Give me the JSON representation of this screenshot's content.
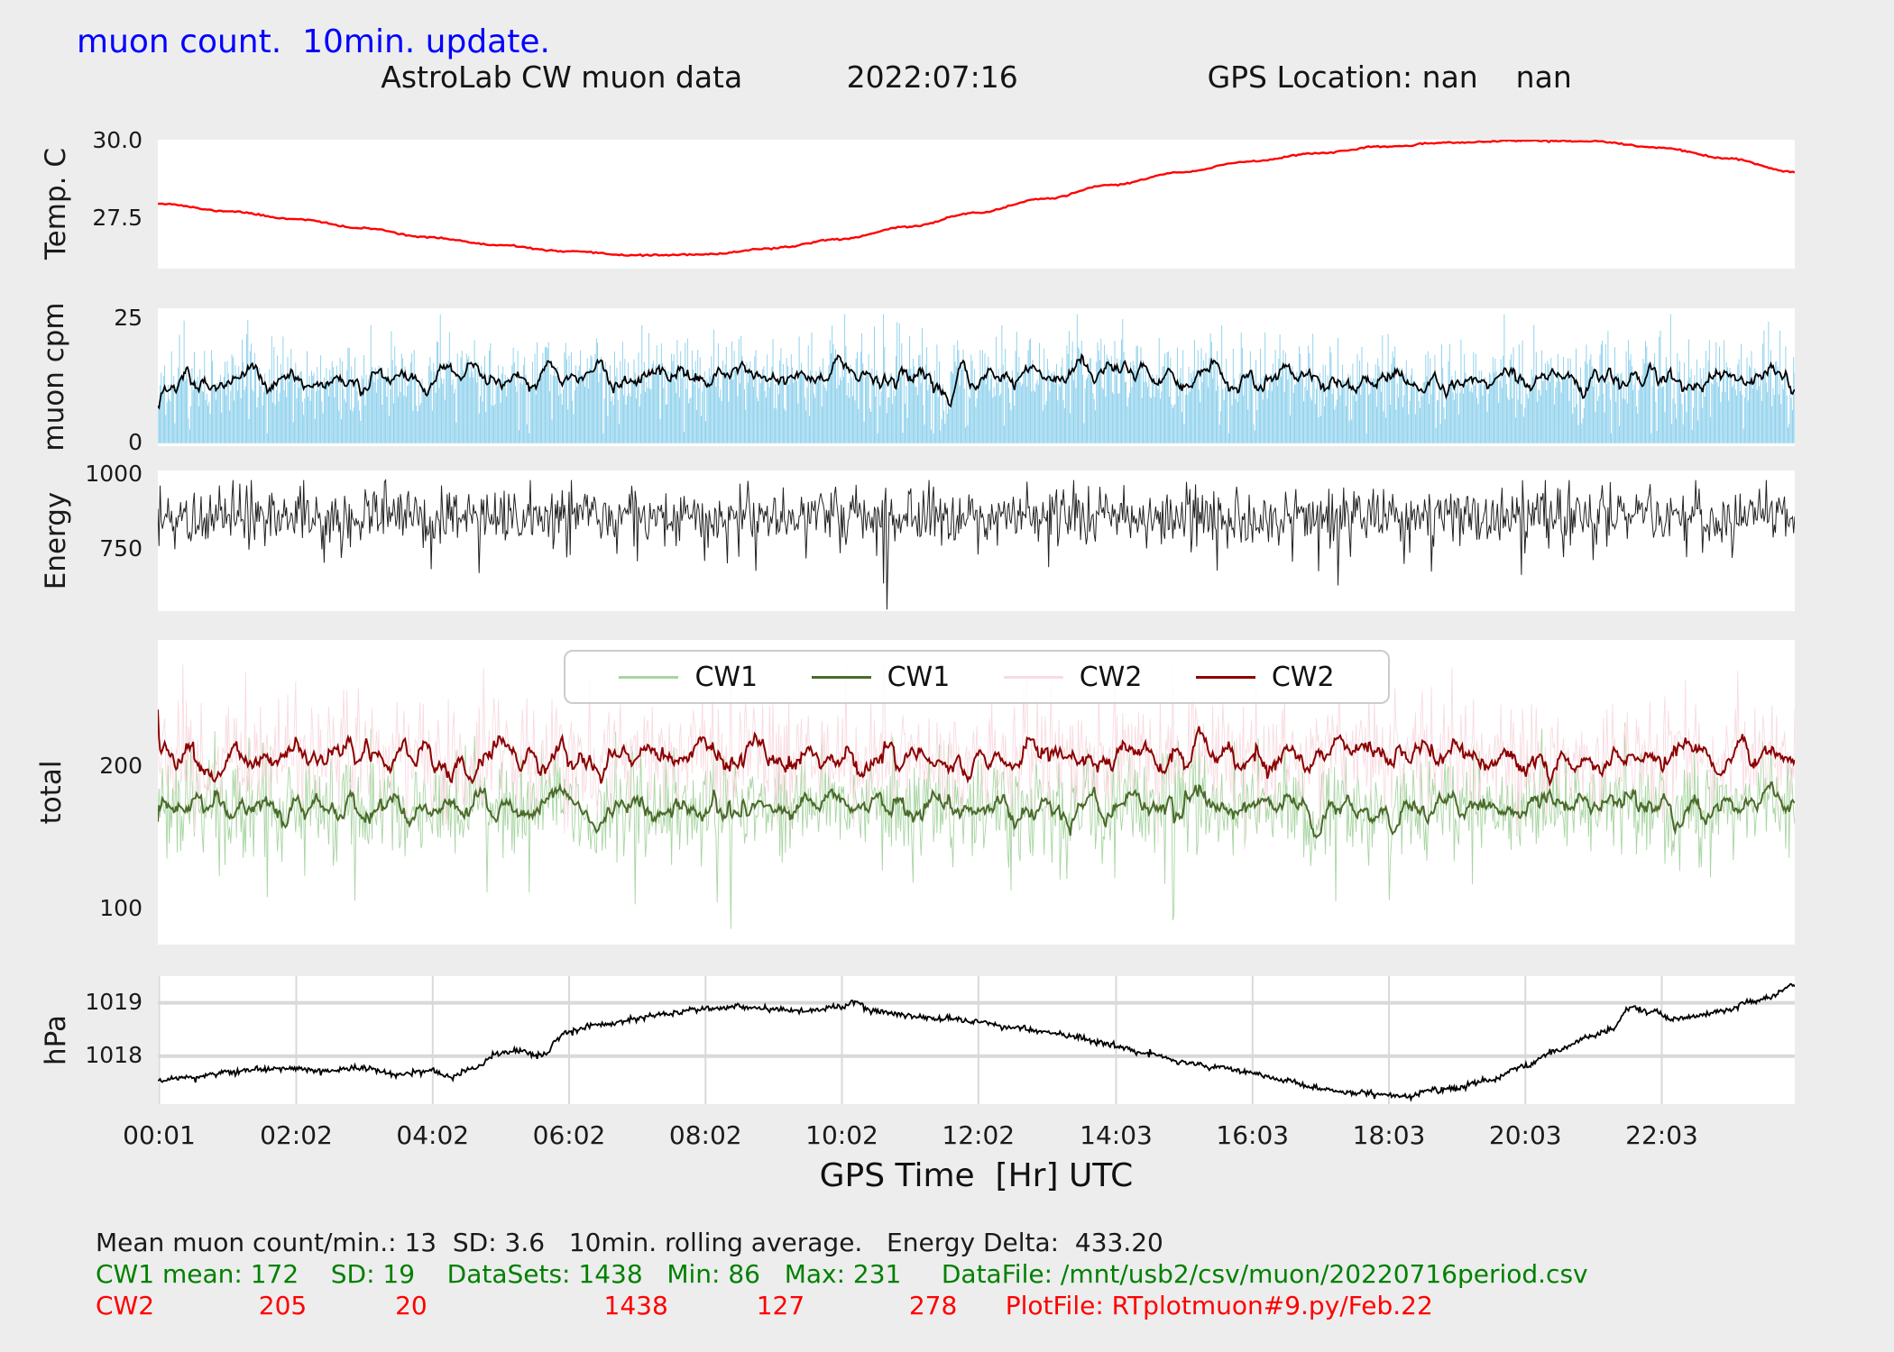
{
  "header": {
    "status_line": "muon count.  10min. update.",
    "title": "AstroLab CW muon data           2022:07:16                    GPS Location: nan    nan"
  },
  "x_axis": {
    "label": "GPS Time  [Hr] UTC",
    "tick_labels": [
      "00:01",
      "02:02",
      "04:02",
      "06:02",
      "08:02",
      "10:02",
      "12:02",
      "14:03",
      "16:03",
      "18:03",
      "20:03",
      "22:03"
    ],
    "tick_hours": [
      0.02,
      2.03,
      4.03,
      6.03,
      8.03,
      10.03,
      12.03,
      14.05,
      16.05,
      18.05,
      20.05,
      22.05
    ],
    "range_hours": [
      0,
      24
    ]
  },
  "chart_data": [
    {
      "type": "line",
      "panel": "temperature",
      "ylabel": "Temp. C",
      "ylim": [
        25.9,
        30.05
      ],
      "yticks": [
        27.5,
        30.0
      ],
      "ytick_labels": [
        "27.5",
        "30.0"
      ],
      "line_color": "#ff0000",
      "x_hours": [
        0,
        1,
        2,
        3,
        4,
        5,
        6,
        7,
        8,
        9,
        10,
        11,
        12,
        13,
        14,
        15,
        16,
        17,
        18,
        19,
        20,
        21,
        22,
        23,
        24
      ],
      "values_c": [
        28.0,
        27.75,
        27.5,
        27.2,
        26.9,
        26.65,
        26.45,
        26.33,
        26.35,
        26.55,
        26.85,
        27.25,
        27.7,
        28.15,
        28.6,
        29.0,
        29.35,
        29.62,
        29.83,
        29.96,
        30.02,
        30.0,
        29.8,
        29.45,
        29.0
      ]
    },
    {
      "type": "bar",
      "panel": "muon-cpm",
      "ylabel": "muon cpm",
      "ylim": [
        -0.6,
        27.2
      ],
      "yticks": [
        0,
        25
      ],
      "ytick_labels": [
        "0",
        "25"
      ],
      "bar_color": "#87ceeb",
      "avg_color": "#000000",
      "n_points": 1438,
      "mean": 13,
      "sd": 3.6,
      "bar_min": 2,
      "bar_max": 26,
      "rolling_window_min": 10
    },
    {
      "type": "line",
      "panel": "energy",
      "ylabel": "Energy",
      "ylim": [
        545,
        1015
      ],
      "yticks": [
        750,
        1000
      ],
      "ytick_labels": [
        "750",
        "1000"
      ],
      "line_color": "#222222",
      "n_points": 1438,
      "mean": 865,
      "sd": 48,
      "min": 550,
      "max": 983,
      "energy_delta": 433.2
    },
    {
      "type": "line",
      "panel": "total",
      "ylabel": "total",
      "ylim": [
        75,
        289
      ],
      "yticks": [
        100,
        200
      ],
      "ytick_labels": [
        "100",
        "200"
      ],
      "legend": [
        {
          "label": "CW1",
          "color": "#a8d5a2",
          "kind": "raw"
        },
        {
          "label": "CW1",
          "color": "#4a6b2a",
          "kind": "10min-average"
        },
        {
          "label": "CW2",
          "color": "#f8dbe0",
          "kind": "raw"
        },
        {
          "label": "CW2",
          "color": "#8b0000",
          "kind": "10min-average"
        }
      ],
      "series": [
        {
          "name": "CW1",
          "mean": 172,
          "sd": 19,
          "min": 86,
          "max": 231,
          "datasets": 1438
        },
        {
          "name": "CW2",
          "mean": 205,
          "sd": 20,
          "min": 127,
          "max": 278,
          "datasets": 1438
        }
      ],
      "rolling_window_min": 10
    },
    {
      "type": "line",
      "panel": "pressure",
      "ylabel": "hPa",
      "ylim": [
        1017.1,
        1019.5
      ],
      "yticks": [
        1018,
        1019
      ],
      "ytick_labels": [
        "1018",
        "1019"
      ],
      "grid": true,
      "line_color": "#000000",
      "x_hours": [
        0,
        0.5,
        1,
        1.5,
        2,
        2.5,
        3,
        3.5,
        4,
        4.3,
        4.6,
        5,
        5.3,
        5.6,
        6,
        6.5,
        7,
        7.5,
        8,
        8.5,
        9,
        9.5,
        10,
        10.2,
        10.5,
        11,
        11.5,
        12,
        12.5,
        13,
        13.5,
        14,
        14.5,
        15,
        15.5,
        16,
        16.5,
        17,
        17.5,
        18,
        18.3,
        18.7,
        19,
        19.5,
        20,
        20.5,
        21,
        21.3,
        21.6,
        21.9,
        22.2,
        22.5,
        23,
        23.3,
        23.6,
        24
      ],
      "values_hpa": [
        1017.55,
        1017.6,
        1017.7,
        1017.75,
        1017.78,
        1017.72,
        1017.78,
        1017.65,
        1017.72,
        1017.6,
        1017.75,
        1018.05,
        1018.1,
        1018.0,
        1018.45,
        1018.6,
        1018.7,
        1018.8,
        1018.88,
        1018.92,
        1018.88,
        1018.85,
        1018.92,
        1019.0,
        1018.85,
        1018.75,
        1018.7,
        1018.65,
        1018.55,
        1018.45,
        1018.35,
        1018.2,
        1018.05,
        1017.9,
        1017.8,
        1017.7,
        1017.55,
        1017.4,
        1017.32,
        1017.28,
        1017.25,
        1017.35,
        1017.4,
        1017.55,
        1017.8,
        1018.1,
        1018.35,
        1018.5,
        1018.9,
        1018.85,
        1018.7,
        1018.75,
        1018.85,
        1019.0,
        1019.1,
        1019.35
      ]
    }
  ],
  "footer": {
    "line1": "Mean muon count/min.: 13  SD: 3.6   10min. rolling average.   Energy Delta:  433.20",
    "line2": "CW1 mean: 172    SD: 19    DataSets: 1438   Min: 86   Max: 231     DataFile: /mnt/usb2/csv/muon/20220716period.csv",
    "line3": "CW2             205           20                      1438           127             278      PlotFile: RTplotmuon#9.py/Feb.22"
  },
  "colors": {
    "figure_background": "#ededed",
    "plot_background": "#ffffff",
    "status_text": "#0000ff",
    "footer_cw1_text": "#008000",
    "footer_cw2_text": "#ff0000",
    "grid": "#d9d9d9"
  }
}
